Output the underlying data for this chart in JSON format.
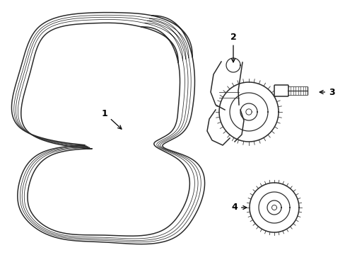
{
  "background_color": "#ffffff",
  "line_color": "#2a2a2a",
  "line_width": 1.1,
  "figsize": [
    4.89,
    3.6
  ],
  "dpi": 100
}
